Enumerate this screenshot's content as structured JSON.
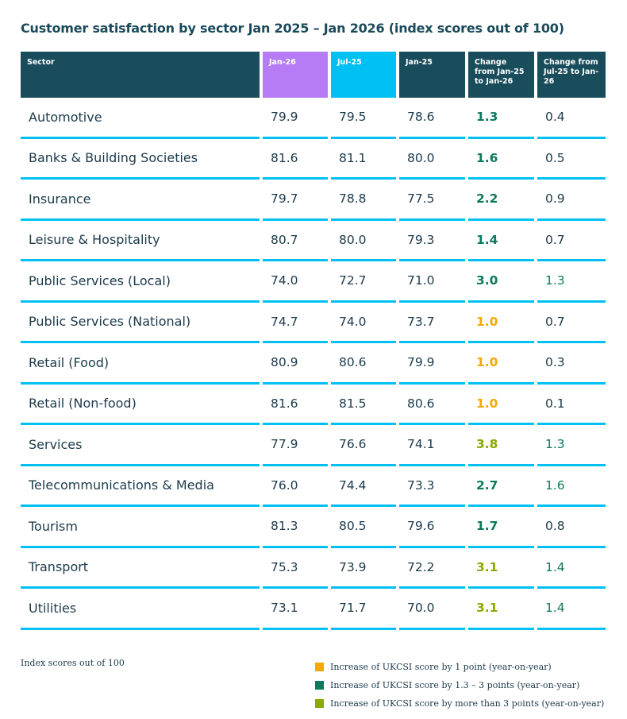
{
  "chart_data": {
    "type": "table",
    "title": "Customer satisfaction by sector Jan 2025 – Jan 2026 (index scores out of 100)",
    "columns": [
      "Sector",
      "Jan-26",
      "Jul-25",
      "Jan-25",
      "Change from Jan-25 to Jan-26",
      "Change from Jul-25 to Jan-26"
    ],
    "header_colors": [
      "#1a4d5c",
      "#b57cf6",
      "#00c0f3",
      "#1a4d5c",
      "#1a4d5c",
      "#1a4d5c"
    ],
    "rows": [
      {
        "sector": "Automotive",
        "jan26": "79.9",
        "jul25": "79.5",
        "jan25": "78.6",
        "chg_yoy": "1.3",
        "chg_yoy_color": "teal",
        "chg_6m": "0.4",
        "chg_6m_color": "default"
      },
      {
        "sector": "Banks & Building Societies",
        "jan26": "81.6",
        "jul25": "81.1",
        "jan25": "80.0",
        "chg_yoy": "1.6",
        "chg_yoy_color": "teal",
        "chg_6m": "0.5",
        "chg_6m_color": "default"
      },
      {
        "sector": "Insurance",
        "jan26": "79.7",
        "jul25": "78.8",
        "jan25": "77.5",
        "chg_yoy": "2.2",
        "chg_yoy_color": "teal",
        "chg_6m": "0.9",
        "chg_6m_color": "default"
      },
      {
        "sector": "Leisure & Hospitality",
        "jan26": "80.7",
        "jul25": "80.0",
        "jan25": "79.3",
        "chg_yoy": "1.4",
        "chg_yoy_color": "teal",
        "chg_6m": "0.7",
        "chg_6m_color": "default"
      },
      {
        "sector": "Public Services (Local)",
        "jan26": "74.0",
        "jul25": "72.7",
        "jan25": "71.0",
        "chg_yoy": "3.0",
        "chg_yoy_color": "teal",
        "chg_6m": "1.3",
        "chg_6m_color": "teal"
      },
      {
        "sector": "Public Services (National)",
        "jan26": "74.7",
        "jul25": "74.0",
        "jan25": "73.7",
        "chg_yoy": "1.0",
        "chg_yoy_color": "orange",
        "chg_6m": "0.7",
        "chg_6m_color": "default"
      },
      {
        "sector": "Retail (Food)",
        "jan26": "80.9",
        "jul25": "80.6",
        "jan25": "79.9",
        "chg_yoy": "1.0",
        "chg_yoy_color": "orange",
        "chg_6m": "0.3",
        "chg_6m_color": "default"
      },
      {
        "sector": "Retail (Non-food)",
        "jan26": "81.6",
        "jul25": "81.5",
        "jan25": "80.6",
        "chg_yoy": "1.0",
        "chg_yoy_color": "orange",
        "chg_6m": "0.1",
        "chg_6m_color": "default"
      },
      {
        "sector": "Services",
        "jan26": "77.9",
        "jul25": "76.6",
        "jan25": "74.1",
        "chg_yoy": "3.8",
        "chg_yoy_color": "green",
        "chg_6m": "1.3",
        "chg_6m_color": "teal"
      },
      {
        "sector": "Telecommunications & Media",
        "jan26": "76.0",
        "jul25": "74.4",
        "jan25": "73.3",
        "chg_yoy": "2.7",
        "chg_yoy_color": "teal",
        "chg_6m": "1.6",
        "chg_6m_color": "teal"
      },
      {
        "sector": "Tourism",
        "jan26": "81.3",
        "jul25": "80.5",
        "jan25": "79.6",
        "chg_yoy": "1.7",
        "chg_yoy_color": "teal",
        "chg_6m": "0.8",
        "chg_6m_color": "default"
      },
      {
        "sector": "Transport",
        "jan26": "75.3",
        "jul25": "73.9",
        "jan25": "72.2",
        "chg_yoy": "3.1",
        "chg_yoy_color": "green",
        "chg_6m": "1.4",
        "chg_6m_color": "teal"
      },
      {
        "sector": "Utilities",
        "jan26": "73.1",
        "jul25": "71.7",
        "jan25": "70.0",
        "chg_yoy": "3.1",
        "chg_yoy_color": "green",
        "chg_6m": "1.4",
        "chg_6m_color": "teal"
      }
    ],
    "note": "Index scores out of 100",
    "legend": [
      {
        "label": "Increase of UKCSI score by 1 point (year-on-year)",
        "color": "#f5a800"
      },
      {
        "label": "Increase of UKCSI score by 1.3 – 3 points (year-on-year)",
        "color": "#0a7a5e"
      },
      {
        "label": "Increase of UKCSI score by more than 3 points (year-on-year)",
        "color": "#8aaa00"
      }
    ],
    "colors": {
      "teal": "#0a7a5e",
      "orange": "#f5a800",
      "green": "#8aaa00",
      "row_rule": "#00c0f3"
    }
  }
}
